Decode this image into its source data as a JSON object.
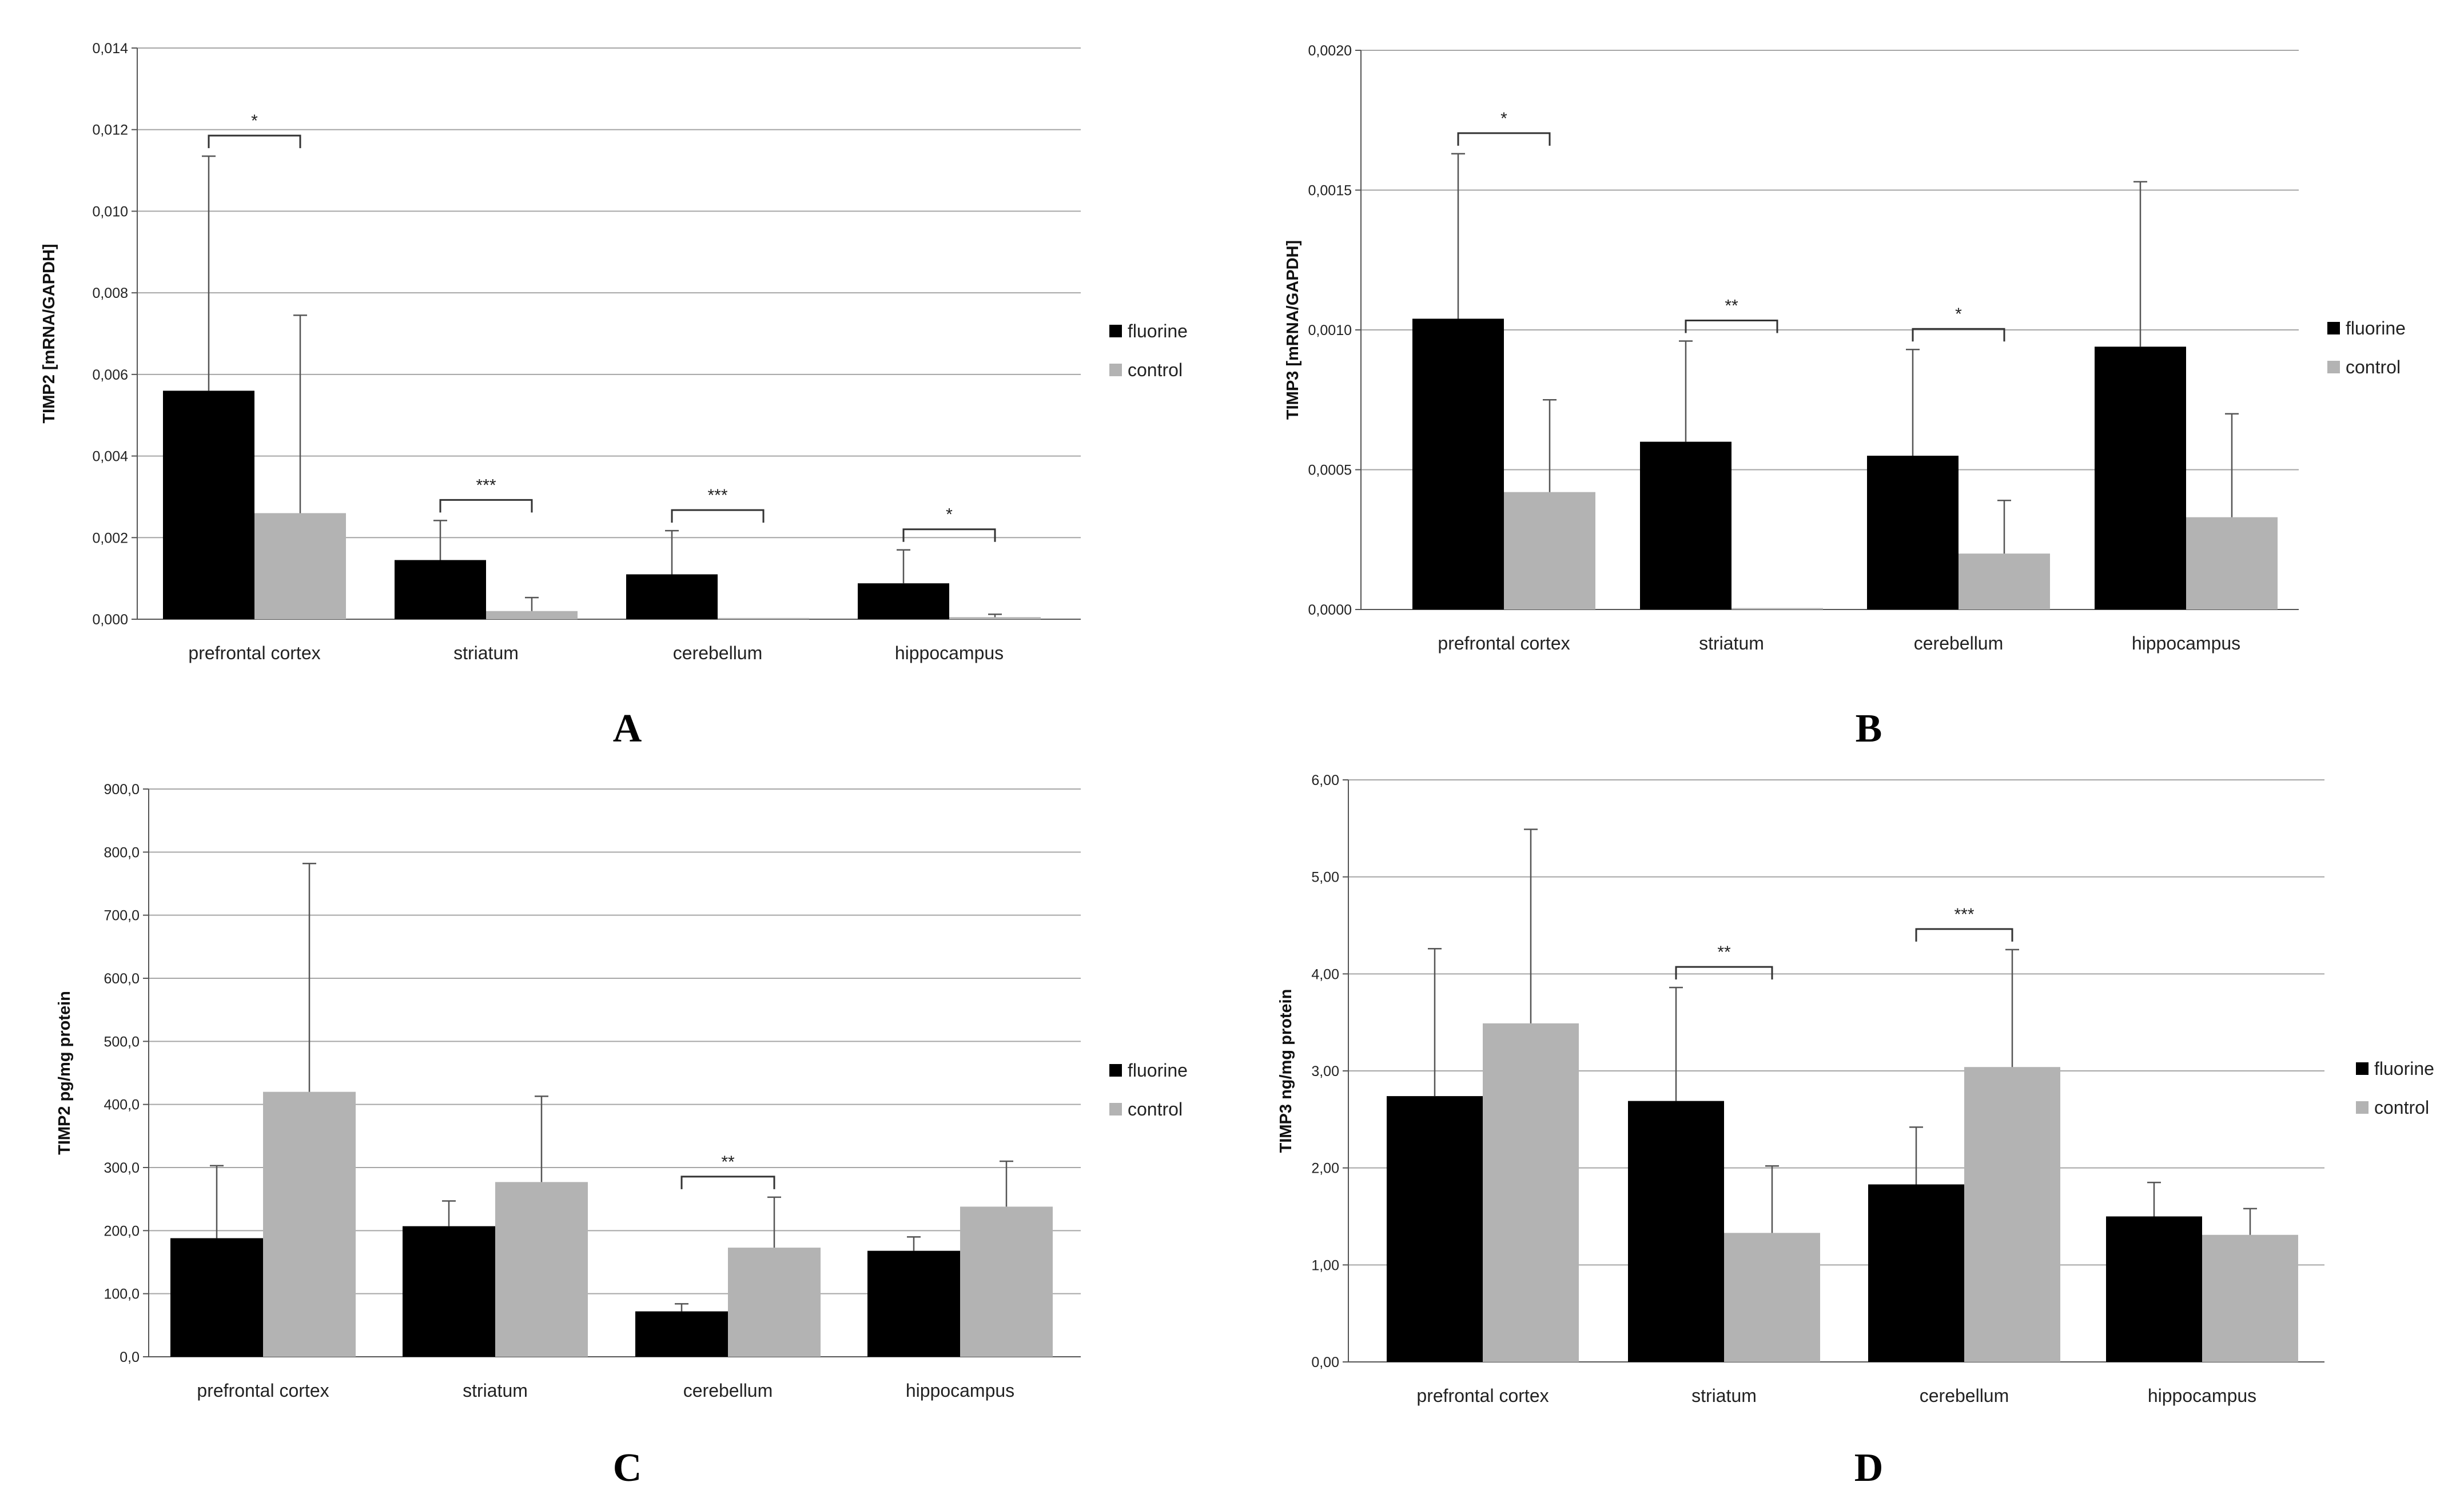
{
  "colors": {
    "fluorine": "#000000",
    "control": "#b3b3b3",
    "grid": "#a6a6a6",
    "axis": "#555555",
    "bracket": "#333333"
  },
  "chart_data": [
    {
      "panel": "A",
      "type": "bar",
      "ylabel": "TIMP2 [mRNA/GAPDH]",
      "ylim": [
        0,
        0.014
      ],
      "yticks": [
        "0,000",
        "0,002",
        "0,004",
        "0,006",
        "0,008",
        "0,010",
        "0,012",
        "0,014"
      ],
      "categories": [
        "prefrontal cortex",
        "striatum",
        "cerebellum",
        "hippocampus"
      ],
      "series": [
        {
          "name": "fluorine",
          "values": [
            0.0056,
            0.00145,
            0.0011,
            0.00088
          ],
          "errors": [
            0.00575,
            0.00097,
            0.00107,
            0.00082
          ]
        },
        {
          "name": "control",
          "values": [
            0.0026,
            0.0002,
            3e-05,
            5e-05
          ],
          "errors": [
            0.00485,
            0.00033,
            0.0,
            7e-05
          ]
        }
      ],
      "significance": [
        "*",
        "***",
        "***",
        "*"
      ],
      "legend": [
        "fluorine",
        "control"
      ]
    },
    {
      "panel": "B",
      "type": "bar",
      "ylabel": "TIMP3 [mRNA/GAPDH]",
      "ylim": [
        0,
        0.002
      ],
      "yticks": [
        "0,0000",
        "0,0005",
        "0,0010",
        "0,0015",
        "0,0020"
      ],
      "categories": [
        "prefrontal cortex",
        "striatum",
        "cerebellum",
        "hippocampus"
      ],
      "series": [
        {
          "name": "fluorine",
          "values": [
            0.00104,
            0.0006,
            0.00055,
            0.00094
          ],
          "errors": [
            0.00059,
            0.00036,
            0.00038,
            0.00059
          ]
        },
        {
          "name": "control",
          "values": [
            0.00042,
            5e-06,
            0.0002,
            0.00033
          ],
          "errors": [
            0.00033,
            0.0,
            0.00019,
            0.00037
          ]
        }
      ],
      "significance": [
        "*",
        "**",
        "*",
        ""
      ],
      "legend": [
        "fluorine",
        "control"
      ]
    },
    {
      "panel": "C",
      "type": "bar",
      "ylabel": "TIMP2 pg/mg protein",
      "ylim": [
        0,
        900
      ],
      "yticks": [
        "0,0",
        "100,0",
        "200,0",
        "300,0",
        "400,0",
        "500,0",
        "600,0",
        "700,0",
        "800,0",
        "900,0"
      ],
      "categories": [
        "prefrontal cortex",
        "striatum",
        "cerebellum",
        "hippocampus"
      ],
      "series": [
        {
          "name": "fluorine",
          "values": [
            188,
            207,
            72,
            168
          ],
          "errors": [
            115,
            40,
            12,
            22
          ]
        },
        {
          "name": "control",
          "values": [
            420,
            277,
            173,
            238
          ],
          "errors": [
            362,
            136,
            80,
            72
          ]
        }
      ],
      "significance": [
        "",
        "",
        "**",
        ""
      ],
      "legend": [
        "fluorine",
        "control"
      ]
    },
    {
      "panel": "D",
      "type": "bar",
      "ylabel": "TIMP3 ng/mg protein",
      "ylim": [
        0,
        6
      ],
      "yticks": [
        "0,00",
        "1,00",
        "2,00",
        "3,00",
        "4,00",
        "5,00",
        "6,00"
      ],
      "categories": [
        "prefrontal cortex",
        "striatum",
        "cerebellum",
        "hippocampus"
      ],
      "series": [
        {
          "name": "fluorine",
          "values": [
            2.74,
            2.69,
            1.83,
            1.5
          ],
          "errors": [
            1.52,
            1.17,
            0.59,
            0.35
          ]
        },
        {
          "name": "control",
          "values": [
            3.49,
            1.33,
            3.04,
            1.31
          ],
          "errors": [
            2.0,
            0.69,
            1.21,
            0.27
          ]
        }
      ],
      "significance": [
        "",
        "**",
        "***",
        ""
      ],
      "legend": [
        "fluorine",
        "control"
      ]
    }
  ]
}
